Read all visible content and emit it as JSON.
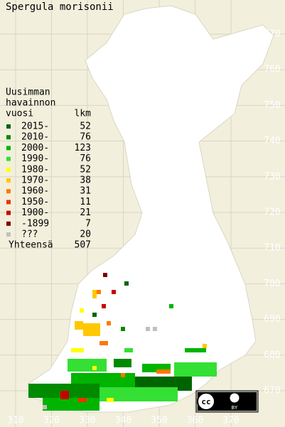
{
  "title": "Spergula morisonii",
  "legend": {
    "title_lines": [
      "Uusimman",
      "havainnon",
      "vuosi"
    ],
    "count_header": "lkm",
    "entries": [
      {
        "label": "2015-",
        "count": 52,
        "color": "#006400"
      },
      {
        "label": "2010-",
        "count": 76,
        "color": "#008a00"
      },
      {
        "label": "2000-",
        "count": 123,
        "color": "#00b400"
      },
      {
        "label": "1990-",
        "count": 76,
        "color": "#33e033"
      },
      {
        "label": "1980-",
        "count": 52,
        "color": "#ffff00"
      },
      {
        "label": "1970-",
        "count": 38,
        "color": "#ffc800"
      },
      {
        "label": "1960-",
        "count": 31,
        "color": "#ff7800"
      },
      {
        "label": "1950-",
        "count": 11,
        "color": "#ee3000"
      },
      {
        "label": "1900-",
        "count": 21,
        "color": "#c80000"
      },
      {
        "label": "-1899",
        "count": 7,
        "color": "#7a0000"
      },
      {
        "label": "???",
        "count": 20,
        "color": "#c0c0c0"
      }
    ],
    "total_label": "Yhteensä",
    "total": 507
  },
  "axes": {
    "y_labels": [
      770,
      760,
      750,
      740,
      730,
      720,
      710,
      700,
      690,
      680,
      670
    ],
    "x_labels": [
      310,
      320,
      330,
      340,
      350,
      360,
      370
    ]
  },
  "license": {
    "cc": "cc",
    "by": "BY"
  }
}
